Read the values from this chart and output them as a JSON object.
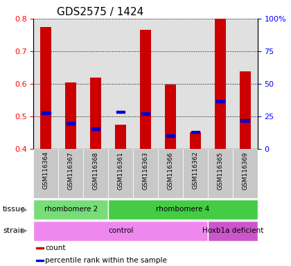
{
  "title": "GDS2575 / 1424",
  "samples": [
    "GSM116364",
    "GSM116367",
    "GSM116368",
    "GSM116361",
    "GSM116363",
    "GSM116366",
    "GSM116362",
    "GSM116365",
    "GSM116369"
  ],
  "count_values": [
    0.775,
    0.605,
    0.62,
    0.475,
    0.765,
    0.597,
    0.452,
    0.8,
    0.638
  ],
  "percentile_values": [
    0.511,
    0.479,
    0.462,
    0.514,
    0.508,
    0.44,
    0.452,
    0.547,
    0.488
  ],
  "ylim_left": [
    0.4,
    0.8
  ],
  "ylim_right": [
    0,
    100
  ],
  "yticks_left": [
    0.4,
    0.5,
    0.6,
    0.7,
    0.8
  ],
  "yticks_right": [
    0,
    25,
    50,
    75,
    100
  ],
  "bar_color": "#cc0000",
  "percentile_color": "#0000cc",
  "bar_width": 0.45,
  "tissue_groups": [
    {
      "label": "rhombomere 2",
      "start": 0,
      "end": 3,
      "color": "#77dd77"
    },
    {
      "label": "rhombomere 4",
      "start": 3,
      "end": 9,
      "color": "#44cc44"
    }
  ],
  "strain_groups": [
    {
      "label": "control",
      "start": 0,
      "end": 7,
      "color": "#ee88ee"
    },
    {
      "label": "Hoxb1a deficient",
      "start": 7,
      "end": 9,
      "color": "#cc55cc"
    }
  ],
  "legend_items": [
    {
      "label": "count",
      "color": "#cc0000"
    },
    {
      "label": "percentile rank within the sample",
      "color": "#0000cc"
    }
  ],
  "background_color": "#ffffff",
  "plot_bg_color": "#e0e0e0",
  "tick_fontsize": 8,
  "label_fontsize": 8,
  "title_fontsize": 11
}
